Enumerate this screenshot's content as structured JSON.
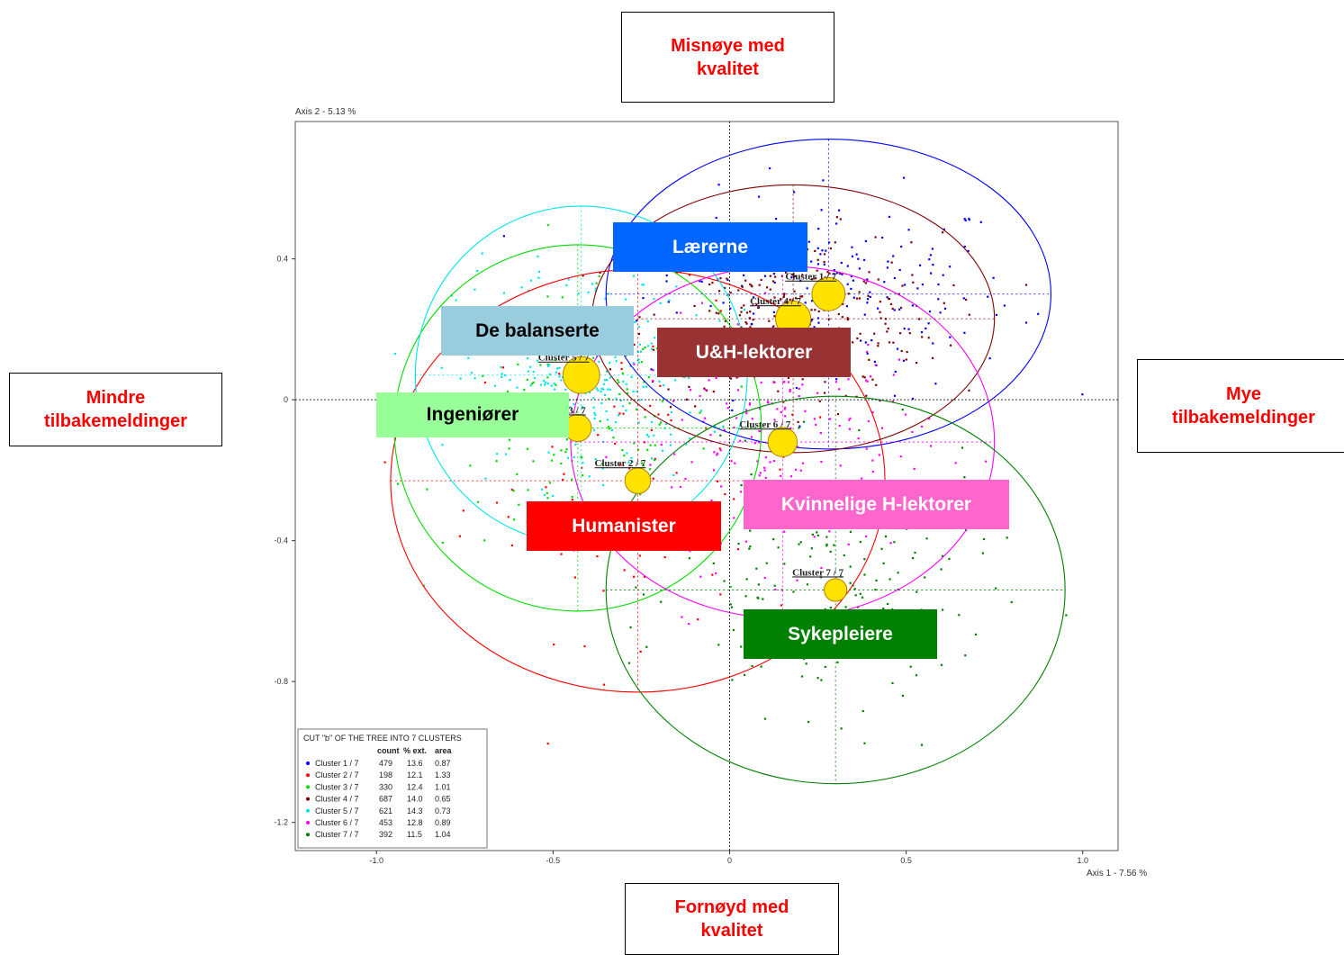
{
  "side_labels": {
    "top": "Misnøye med\nkvalitet",
    "bottom": "Fornøyd med\nkvalitet",
    "left": "Mindre\ntilbakemeldinger",
    "right": "Mye\ntilbakemeldinger"
  },
  "overlay_labels": [
    {
      "text": "Lærerne",
      "bg": "#0066ff",
      "color": "#ffffff"
    },
    {
      "text": "De balanserte",
      "bg": "#99ccdd",
      "color": "#000000"
    },
    {
      "text": "U&H-lektorer",
      "bg": "#993333",
      "color": "#ffffff"
    },
    {
      "text": "Ingeniører",
      "bg": "#99ff99",
      "color": "#000000"
    },
    {
      "text": "Kvinnelige H-lektorer",
      "bg": "#ff66cc",
      "color": "#ffffff"
    },
    {
      "text": "Humanister",
      "bg": "#ff0000",
      "color": "#ffffff"
    },
    {
      "text": "Sykepleiere",
      "bg": "#008000",
      "color": "#ffffff"
    }
  ],
  "chart_data": {
    "type": "scatter",
    "xlabel": "Axis 1  -  7.56 %",
    "ylabel": "Axis 2  -  5.13 %",
    "xlim": [
      -1.23,
      1.1
    ],
    "ylim": [
      -1.28,
      0.79
    ],
    "x_ticks": [
      "-1.0",
      "-0.5",
      "0",
      "0.5",
      "1.0"
    ],
    "y_ticks": [
      "0.4",
      "0",
      "-0.4",
      "-0.8",
      "-1.2"
    ],
    "grid": false,
    "legend_placement": "bottom-left",
    "legend": {
      "title": "CUT \"b\" OF THE TREE INTO  7 CLUSTERS",
      "headers": [
        "count",
        "% ext.",
        "area"
      ],
      "rows": [
        {
          "name": "Cluster  1 / 7",
          "count": "479",
          "ext": "13.6",
          "area": "0.87",
          "color": "#0000ff"
        },
        {
          "name": "Cluster  2 / 7",
          "count": "198",
          "ext": "12.1",
          "area": "1.33",
          "color": "#ff0000"
        },
        {
          "name": "Cluster  3 / 7",
          "count": "330",
          "ext": "12.4",
          "area": "1.01",
          "color": "#00dd00"
        },
        {
          "name": "Cluster  4 / 7",
          "count": "687",
          "ext": "14.0",
          "area": "0.65",
          "color": "#800000"
        },
        {
          "name": "Cluster  5 / 7",
          "count": "621",
          "ext": "14.3",
          "area": "0.73",
          "color": "#00e5e5"
        },
        {
          "name": "Cluster  6 / 7",
          "count": "453",
          "ext": "12.8",
          "area": "0.89",
          "color": "#ff00ff"
        },
        {
          "name": "Cluster  7 / 7",
          "count": "392",
          "ext": "11.5",
          "area": "1.04",
          "color": "#008000"
        }
      ]
    },
    "clusters": [
      {
        "label": "Cluster  1 / 7",
        "x": 0.28,
        "y": 0.3,
        "spread": [
          0.48,
          0.26
        ],
        "ellipse": {
          "rx": 0.63,
          "ry": 0.44
        }
      },
      {
        "label": "Cluster  2 / 7",
        "x": -0.26,
        "y": -0.23,
        "spread": [
          0.45,
          0.4
        ],
        "ellipse": {
          "rx": 0.7,
          "ry": 0.6
        }
      },
      {
        "label": "Cluster  3 / 7",
        "x": -0.43,
        "y": -0.08,
        "spread": [
          0.35,
          0.32
        ],
        "ellipse": {
          "rx": 0.52,
          "ry": 0.52
        }
      },
      {
        "label": "Cluster  4 / 7",
        "x": 0.18,
        "y": 0.23,
        "spread": [
          0.38,
          0.22
        ],
        "ellipse": {
          "rx": 0.57,
          "ry": 0.38
        }
      },
      {
        "label": "Cluster  5 / 7",
        "x": -0.42,
        "y": 0.07,
        "spread": [
          0.32,
          0.28
        ],
        "ellipse": {
          "rx": 0.47,
          "ry": 0.48
        }
      },
      {
        "label": "Cluster  6 / 7",
        "x": 0.15,
        "y": -0.12,
        "spread": [
          0.38,
          0.32
        ],
        "ellipse": {
          "rx": 0.6,
          "ry": 0.5
        }
      },
      {
        "label": "Cluster  7 / 7",
        "x": 0.3,
        "y": -0.54,
        "spread": [
          0.4,
          0.32
        ],
        "ellipse": {
          "rx": 0.65,
          "ry": 0.55
        }
      }
    ]
  }
}
